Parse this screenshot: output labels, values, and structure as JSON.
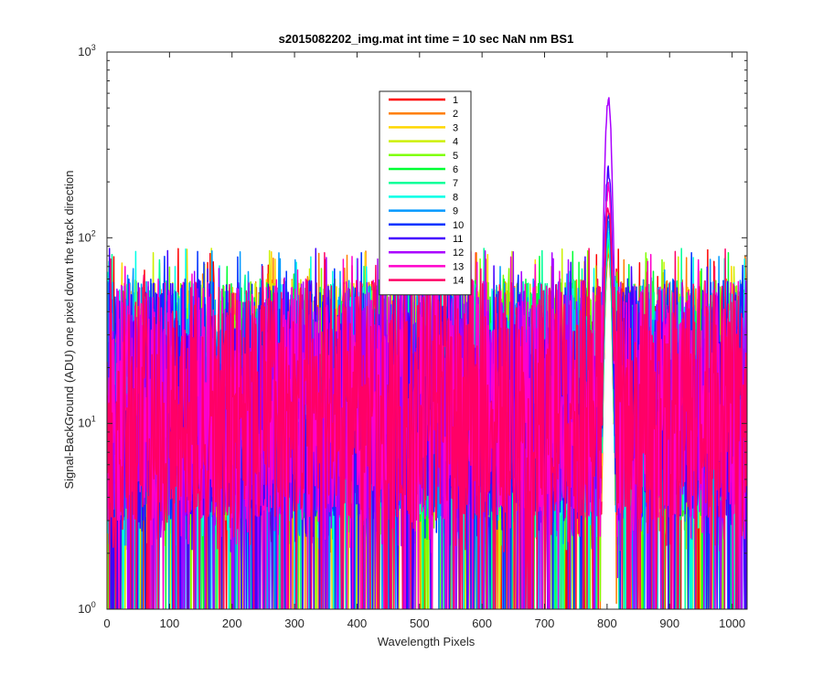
{
  "chart_data": {
    "type": "line",
    "title": "s2015082202_img.mat int time = 10 sec  NaN nm BS1",
    "xlabel": "Wavelength Pixels",
    "ylabel": "Signal-BackGround (ADU) one pixel down the track direction",
    "xlim": [
      0,
      1024
    ],
    "ylim": [
      1,
      1000
    ],
    "yscale": "log",
    "grid": false,
    "legend_position": "top-center",
    "x_ticks": [
      0,
      100,
      200,
      300,
      400,
      500,
      600,
      700,
      800,
      900,
      1000
    ],
    "x_tick_labels": [
      "0",
      "100",
      "200",
      "300",
      "400",
      "500",
      "600",
      "700",
      "800",
      "900",
      "1000"
    ],
    "y_ticks": [
      1,
      10,
      100,
      1000
    ],
    "y_tick_labels": [
      {
        "base": "10",
        "exp": "0"
      },
      {
        "base": "10",
        "exp": "1"
      },
      {
        "base": "10",
        "exp": "2"
      },
      {
        "base": "10",
        "exp": "3"
      }
    ],
    "noise_band": {
      "x_range": [
        0,
        1023
      ],
      "min": 1,
      "typical_low": 3,
      "typical_high": 60,
      "max": 88
    },
    "peak": {
      "x": 802,
      "width": 10,
      "values_by_series": [
        90,
        95,
        100,
        100,
        100,
        105,
        110,
        115,
        130,
        150,
        250,
        620,
        200,
        160
      ]
    },
    "series": [
      {
        "name": "1",
        "color": "#ff0000"
      },
      {
        "name": "2",
        "color": "#ff7f00"
      },
      {
        "name": "3",
        "color": "#ffd700"
      },
      {
        "name": "4",
        "color": "#cdf000"
      },
      {
        "name": "5",
        "color": "#7fff00"
      },
      {
        "name": "6",
        "color": "#00ff33"
      },
      {
        "name": "7",
        "color": "#00ff99"
      },
      {
        "name": "8",
        "color": "#00ffe6"
      },
      {
        "name": "9",
        "color": "#0099ff"
      },
      {
        "name": "10",
        "color": "#0033ff"
      },
      {
        "name": "11",
        "color": "#4400ff"
      },
      {
        "name": "12",
        "color": "#aa00ff"
      },
      {
        "name": "13",
        "color": "#ff00cc"
      },
      {
        "name": "14",
        "color": "#ff0066"
      }
    ]
  }
}
